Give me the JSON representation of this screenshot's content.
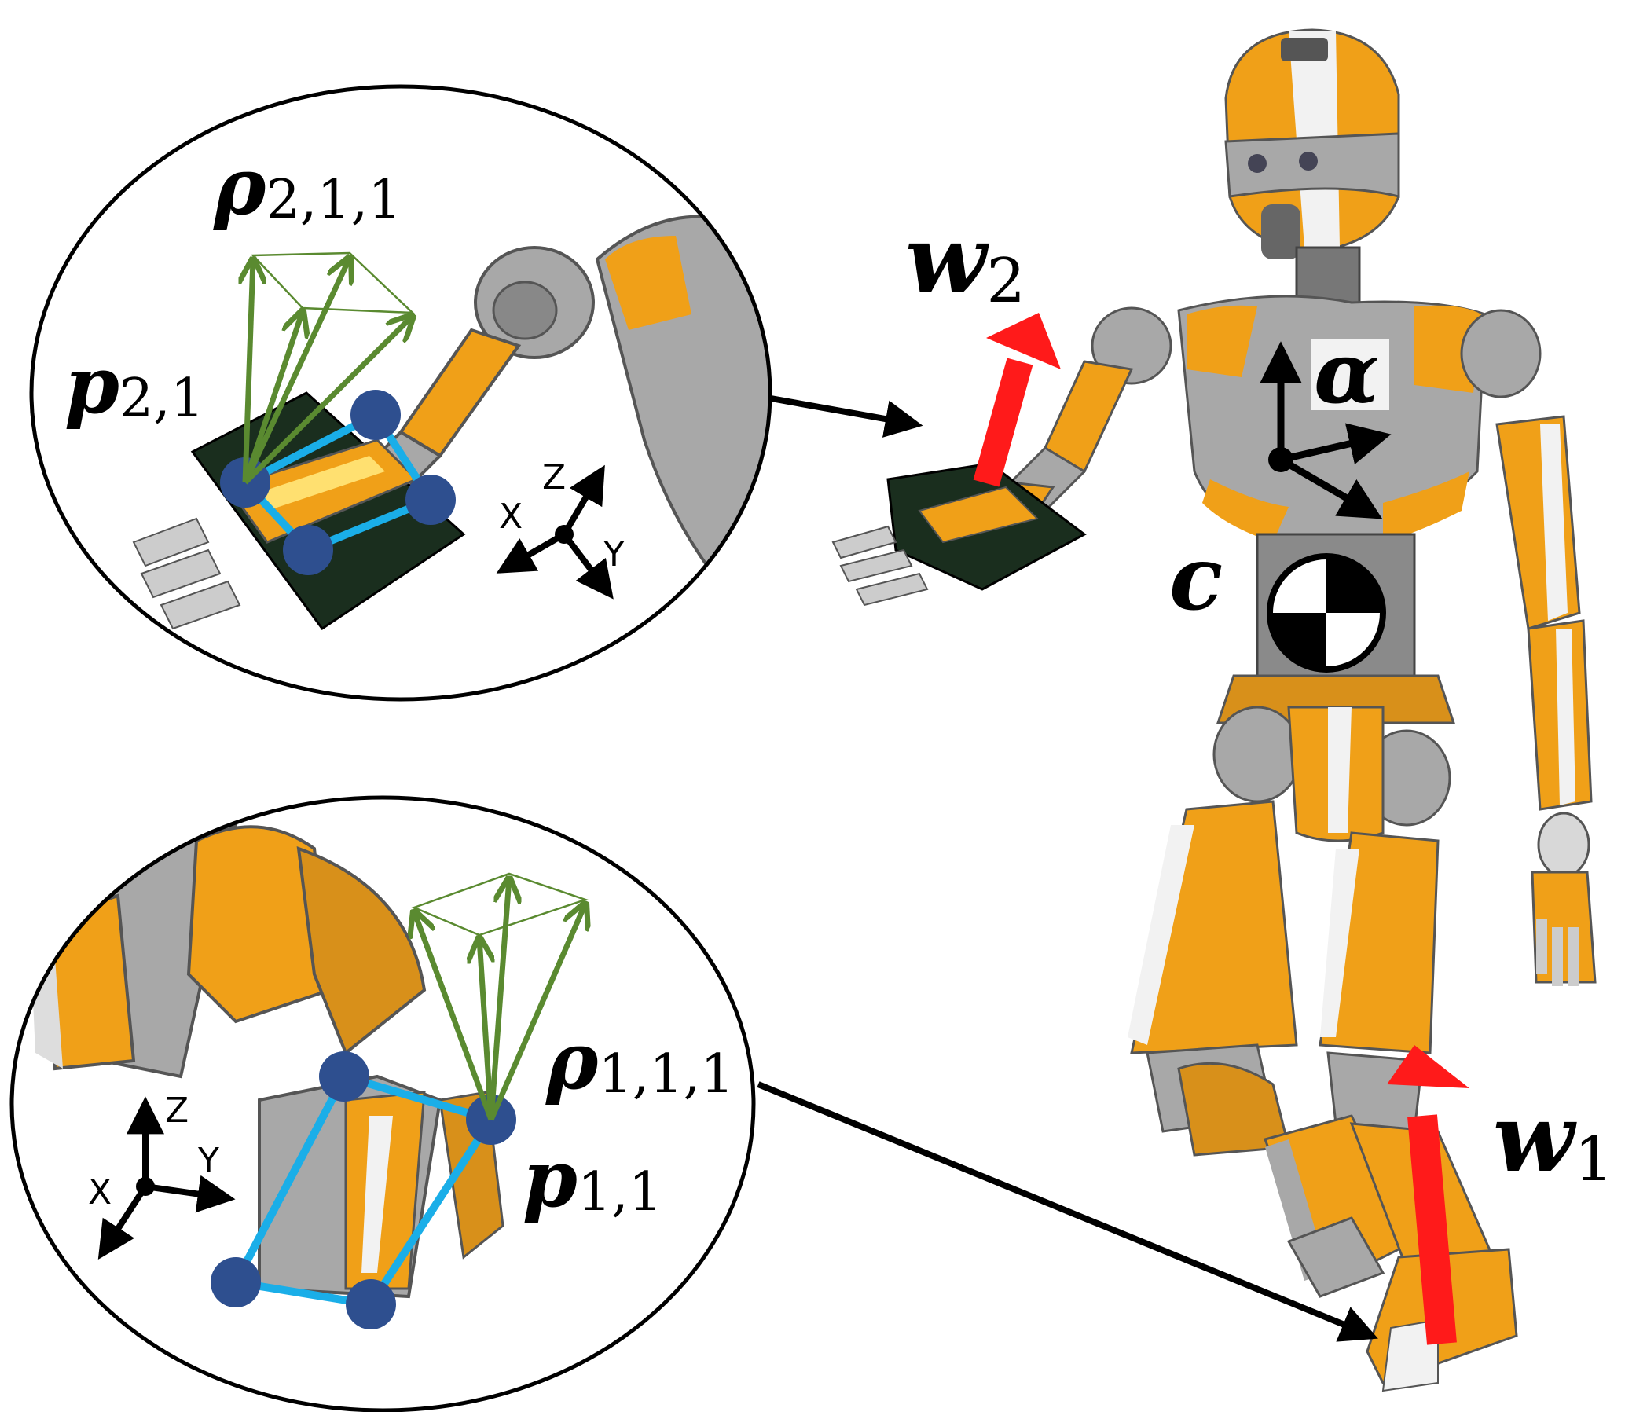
{
  "labels": {
    "rho_211": {
      "main": "ρ",
      "sub": "2,1,1"
    },
    "p_21": {
      "main": "p",
      "sub": "2,1"
    },
    "rho_111": {
      "main": "ρ",
      "sub": "1,1,1"
    },
    "p_11": {
      "main": "p",
      "sub": "1,1"
    },
    "w2": {
      "main": "w",
      "sub": "2"
    },
    "w1": {
      "main": "w",
      "sub": "1"
    },
    "alpha": "α",
    "c": "c"
  },
  "axes_top": {
    "x": "X",
    "y": "Y",
    "z": "Z"
  },
  "axes_bottom": {
    "x": "X",
    "y": "Y",
    "z": "Z"
  },
  "colors": {
    "robot_orange": "#f0a018",
    "robot_gray": "#a8a8a8",
    "force_arrow": "#ff1a1a",
    "cone": "#5a8a30",
    "contact_polygon": "#1aaee8",
    "contact_point": "#2e4f8f",
    "hand_plate": "#1a2e1e"
  },
  "icons": [
    "com-marker-icon",
    "frame-axes-icon"
  ]
}
